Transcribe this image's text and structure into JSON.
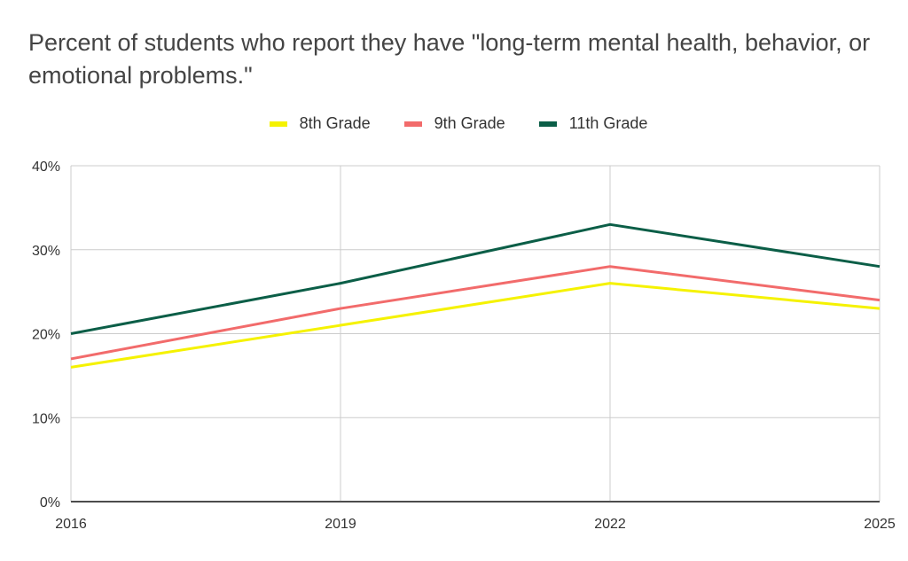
{
  "chart_data": {
    "type": "line",
    "title": "Percent of students who report they have \"long-term mental health, behavior, or emotional problems.\"",
    "xlabel": "",
    "ylabel": "",
    "x": [
      "2016",
      "2019",
      "2022",
      "2025"
    ],
    "ylim": [
      0,
      40
    ],
    "yticks": [
      "0%",
      "10%",
      "20%",
      "30%",
      "40%"
    ],
    "grid": true,
    "legend_position": "top",
    "series": [
      {
        "name": "8th Grade",
        "color": "#f5f200",
        "values": [
          16,
          21,
          26,
          23
        ]
      },
      {
        "name": "9th Grade",
        "color": "#f26b6b",
        "values": [
          17,
          23,
          28,
          24
        ]
      },
      {
        "name": "11th Grade",
        "color": "#0b5e47",
        "values": [
          20,
          26,
          33,
          28
        ]
      }
    ]
  }
}
